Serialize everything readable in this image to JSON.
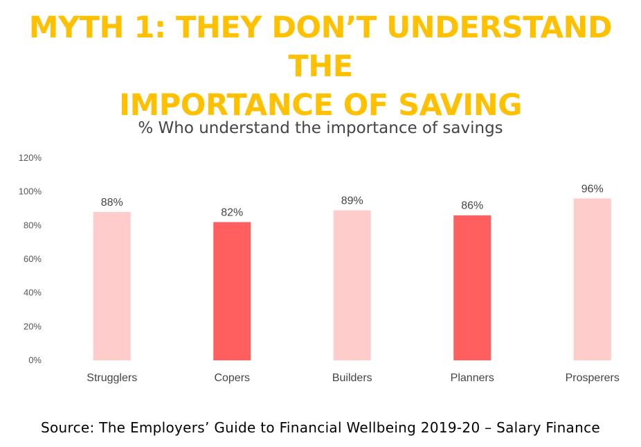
{
  "slide_title_line1": "MYTH 1: THEY DON’T UNDERSTAND THE",
  "slide_title_line2": "IMPORTANCE OF SAVING",
  "source": "Source: The Employers’ Guide to Financial Wellbeing 2019-20 – Salary Finance",
  "colors": {
    "title": "#FFC000",
    "light_bar": "#FFCCCC",
    "dark_bar": "#FF5F5F"
  },
  "chart_data": {
    "type": "bar",
    "title": "% Who understand the importance of savings",
    "categories": [
      "Strugglers",
      "Copers",
      "Builders",
      "Planners",
      "Prosperers"
    ],
    "values": [
      88,
      82,
      89,
      86,
      96
    ],
    "data_labels": [
      "88%",
      "82%",
      "89%",
      "86%",
      "96%"
    ],
    "bar_colors": [
      "#FFCCCC",
      "#FF5F5F",
      "#FFCCCC",
      "#FF5F5F",
      "#FFCCCC"
    ],
    "xlabel": "",
    "ylabel": "",
    "ylim": [
      0,
      120
    ],
    "yticks": [
      "0%",
      "20%",
      "40%",
      "60%",
      "80%",
      "100%",
      "120%"
    ],
    "grid": false,
    "legend": "none"
  }
}
